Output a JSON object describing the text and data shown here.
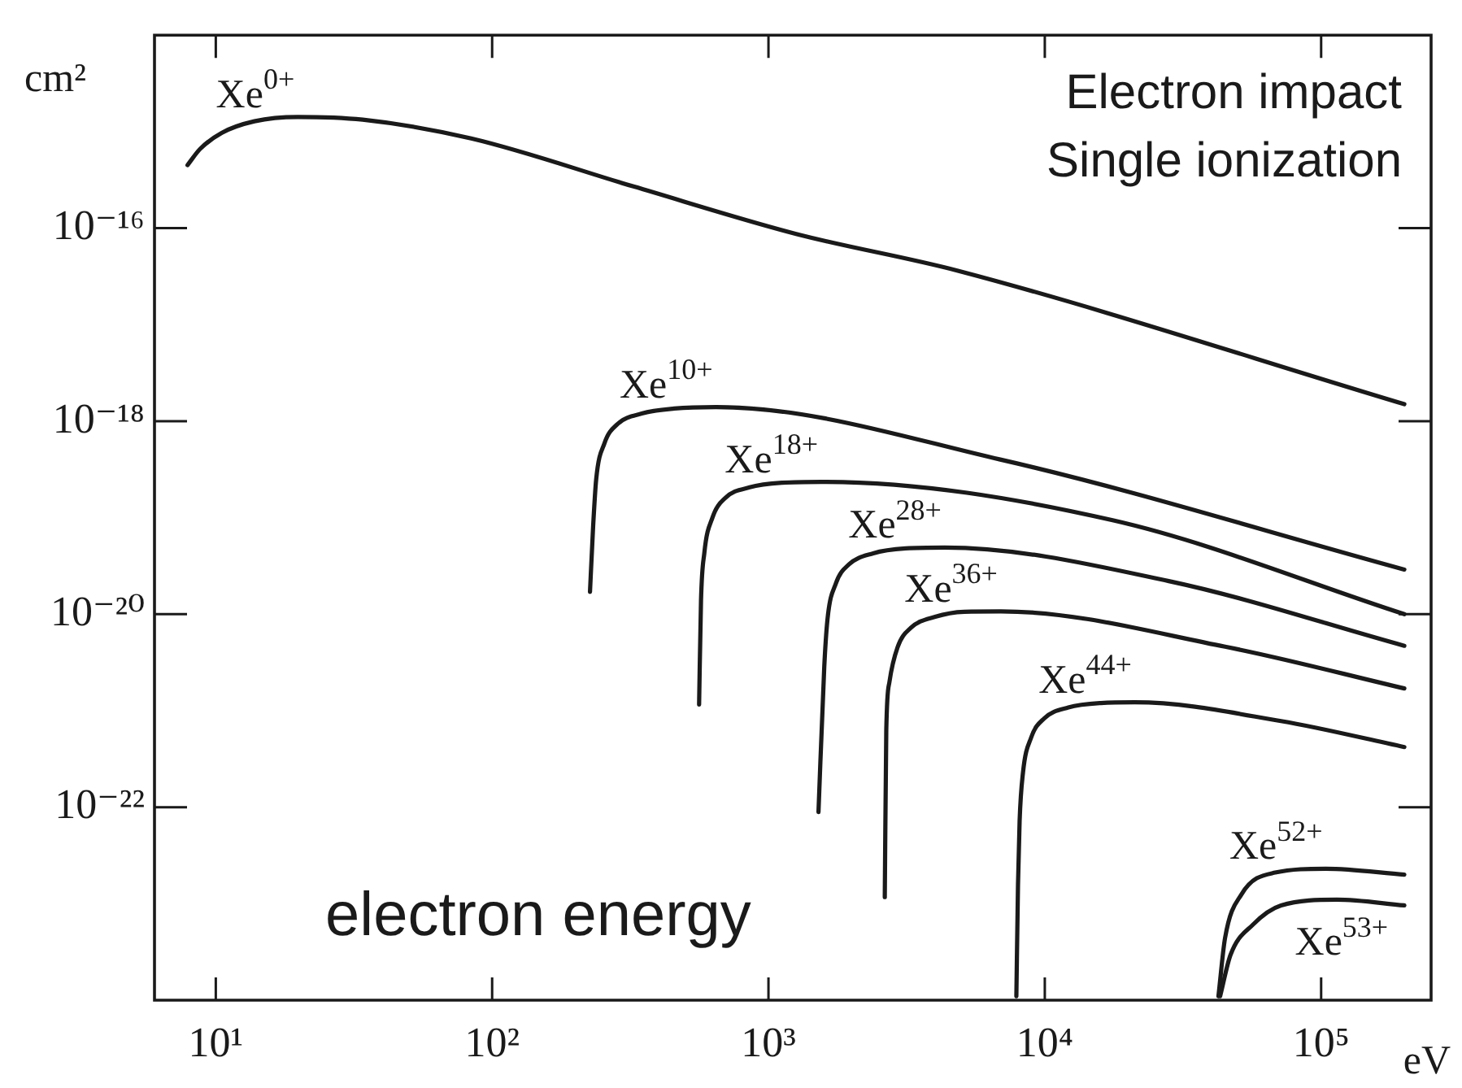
{
  "chart_data": {
    "type": "line",
    "xlabel": "eV",
    "ylabel": "cm²",
    "log": "xy",
    "grid": false,
    "xlim": [
      6,
      250000
    ],
    "ylim": [
      1e-24,
      1e-14
    ],
    "xticks": [
      {
        "value": 10,
        "label": "10¹"
      },
      {
        "value": 100,
        "label": "10²"
      },
      {
        "value": 1000,
        "label": "10³"
      },
      {
        "value": 10000,
        "label": "10⁴"
      },
      {
        "value": 100000,
        "label": "10⁵"
      }
    ],
    "yticks": [
      {
        "value": 1e-22,
        "label": "10⁻²²"
      },
      {
        "value": 1e-20,
        "label": "10⁻²⁰"
      },
      {
        "value": 1e-18,
        "label": "10⁻¹⁸"
      },
      {
        "value": 1e-16,
        "label": "10⁻¹⁶"
      }
    ],
    "annotations": [
      "Electron impact",
      "Single ionization",
      "electron energy"
    ],
    "series": [
      {
        "name": "Xe$^{0+}$",
        "color": "#1a1a1a",
        "x": [
          7.9,
          8.77,
          10.5,
          13.8,
          19.8,
          34,
          84,
          325,
          1260,
          4880,
          200000
        ],
        "values": [
          4.5e-16,
          6.6e-16,
          9.7e-16,
          1.28e-15,
          1.42e-15,
          1.33e-15,
          8.5e-16,
          2.7e-16,
          8.7e-17,
          3.6e-17,
          1.5e-18
        ]
      },
      {
        "name": "Xe$^{10+}$",
        "color": "#1a1a1a",
        "x": [
          226,
          232,
          238,
          255,
          284,
          348,
          456,
          646,
          6900,
          200000
        ],
        "values": [
          1.7e-20,
          8.1e-20,
          2.5e-19,
          5.9e-19,
          9.3e-19,
          1.2e-18,
          1.35e-18,
          1.4e-18,
          4e-19,
          2.9e-20
        ]
      },
      {
        "name": "Xe$^{18+}$",
        "color": "#1a1a1a",
        "x": [
          561,
          570,
          586,
          627,
          698,
          855,
          1122,
          1552,
          17600,
          200000
        ],
        "values": [
          1.16e-21,
          1.38e-20,
          4.3e-20,
          1e-19,
          1.6e-19,
          2.06e-19,
          2.3e-19,
          2.35e-19,
          9.4e-20,
          1e-20
        ]
      },
      {
        "name": "Xe$^{28+}$",
        "color": "#1a1a1a",
        "x": [
          1517,
          1592,
          1636,
          1752,
          1954,
          2394,
          3135,
          4345,
          28100,
          200000
        ],
        "values": [
          8.9e-23,
          2.86e-21,
          8.95e-21,
          2.07e-20,
          3.27e-20,
          4.27e-20,
          4.8e-20,
          4.9e-20,
          2.2e-20,
          4.7e-21
        ]
      },
      {
        "name": "Xe$^{36+}$",
        "color": "#1a1a1a",
        "x": [
          2636,
          2669,
          2740,
          2935,
          3273,
          4011,
          5117,
          6935,
          44900,
          200000
        ],
        "values": [
          1.17e-23,
          6.3e-22,
          1.98e-21,
          4.57e-21,
          7.2e-21,
          9.4e-21,
          1.06e-20,
          1.07e-20,
          4.6e-21,
          1.7e-21
        ]
      },
      {
        "name": "Xe$^{44+}$",
        "color": "#1a1a1a",
        "x": [
          7890,
          7998,
          8107,
          8335,
          8920,
          9940,
          12170,
          15950,
          21200,
          71600,
          200000
        ],
        "values": [
          1.1e-24,
          1.55e-23,
          7.2e-23,
          2.26e-22,
          5.24e-22,
          8.3e-22,
          1.08e-21,
          1.2e-21,
          1.22e-21,
          7.8e-22,
          4.2e-22
        ]
      },
      {
        "name": "Xe$^{52+}$",
        "color": "#1a1a1a",
        "x": [
          42500,
          44900,
          51500,
          68200,
          104000,
          200000
        ],
        "values": [
          1.1e-24,
          4.4e-24,
          1.25e-23,
          2.1e-23,
          2.3e-23,
          2e-23
        ]
      },
      {
        "name": "Xe$^{53+}$",
        "color": "#1a1a1a",
        "x": [
          43100,
          47000,
          56600,
          71600,
          114000,
          200000
        ],
        "values": [
          1.1e-24,
          2.95e-24,
          6.05e-24,
          9.6e-24,
          1.1e-23,
          9.6e-24
        ]
      }
    ]
  }
}
